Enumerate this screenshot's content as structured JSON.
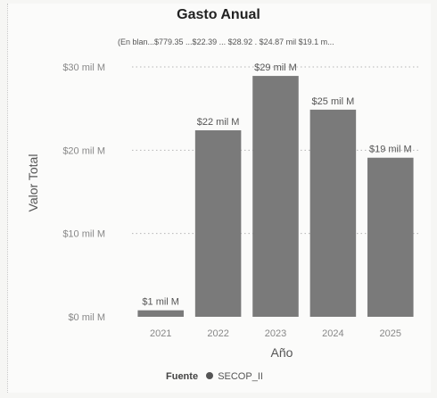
{
  "chart_data": {
    "type": "bar",
    "title": "Gasto Anual",
    "subtitle": "(En blan...$779.35 ...$22.39 ... $28.92 . $24.87 mil $19.1 m...",
    "xlabel": "Año",
    "ylabel": "Valor Total",
    "categories": [
      "2021",
      "2022",
      "2023",
      "2024",
      "2025"
    ],
    "values": [
      0.78,
      22.39,
      28.92,
      24.87,
      19.1
    ],
    "data_labels": [
      "$1 mil M",
      "$22 mil M",
      "$29 mil M",
      "$25 mil M",
      "$19 mil M"
    ],
    "yticks": [
      0,
      10,
      20,
      30
    ],
    "ytick_labels": [
      "$0 mil M",
      "$10 mil M",
      "$20 mil M",
      "$30 mil M"
    ],
    "ylim": [
      0,
      30
    ],
    "grid": true,
    "legend": {
      "title": "Fuente",
      "entries": [
        {
          "name": "SECOP_II",
          "color": "#555555"
        }
      ],
      "placement": "bottom"
    },
    "colors": {
      "bar": "#7a7a7a",
      "gridline": "#b5b5b5",
      "axis_text": "#888888"
    }
  }
}
